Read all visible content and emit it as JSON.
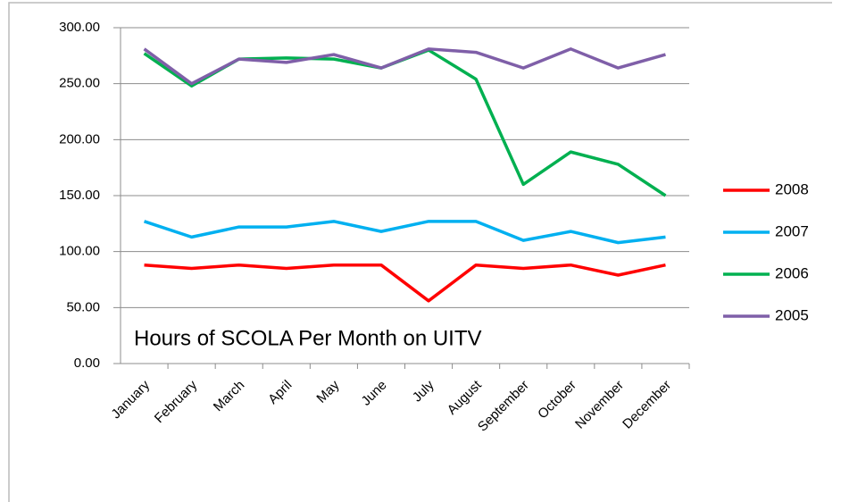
{
  "chart_data": {
    "type": "line",
    "annotation": "Hours of SCOLA Per Month on UITV",
    "categories": [
      "January",
      "February",
      "March",
      "April",
      "May",
      "June",
      "July",
      "August",
      "September",
      "October",
      "November",
      "December"
    ],
    "series": [
      {
        "name": "2008",
        "color": "#ff0000",
        "values": [
          88,
          85,
          88,
          85,
          88,
          88,
          56,
          88,
          85,
          88,
          79,
          88
        ]
      },
      {
        "name": "2007",
        "color": "#00b0f0",
        "values": [
          127,
          113,
          122,
          122,
          127,
          118,
          127,
          127,
          110,
          118,
          108,
          113
        ]
      },
      {
        "name": "2006",
        "color": "#00b050",
        "values": [
          277,
          248,
          272,
          273,
          272,
          264,
          280,
          254,
          160,
          189,
          178,
          150
        ]
      },
      {
        "name": "2005",
        "color": "#7f5fa8",
        "values": [
          281,
          250,
          272,
          269,
          276,
          264,
          281,
          278,
          264,
          281,
          264,
          276
        ]
      }
    ],
    "ylim": [
      0,
      300
    ],
    "yticks": [
      {
        "value": 0,
        "label": "0.00"
      },
      {
        "value": 50,
        "label": "50.00"
      },
      {
        "value": 100,
        "label": "100.00"
      },
      {
        "value": 150,
        "label": "150.00"
      },
      {
        "value": 200,
        "label": "200.00"
      },
      {
        "value": 250,
        "label": "250.00"
      },
      {
        "value": 300,
        "label": "300.00"
      }
    ],
    "grid": true,
    "legend": "right"
  }
}
